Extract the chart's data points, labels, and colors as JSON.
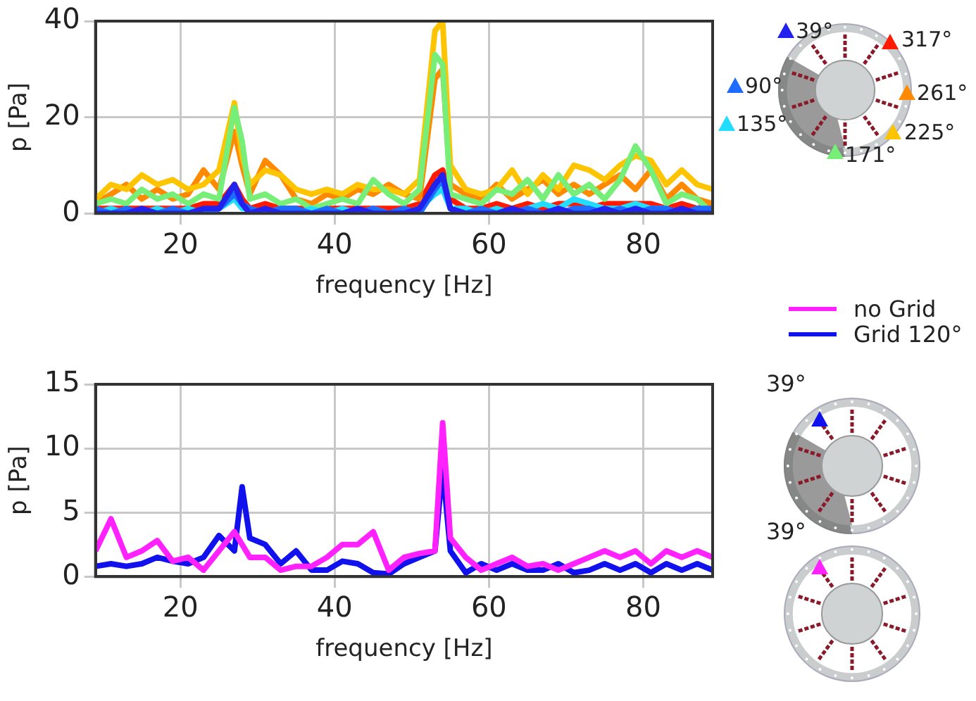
{
  "chart_data": [
    {
      "type": "line",
      "xlabel": "frequency [Hz]",
      "ylabel": "p [Pa]",
      "x": [
        9,
        11,
        13,
        15,
        17,
        19,
        21,
        23,
        25,
        27,
        28,
        29,
        31,
        33,
        35,
        37,
        39,
        41,
        43,
        45,
        47,
        49,
        51,
        53,
        54,
        55,
        57,
        59,
        61,
        63,
        65,
        67,
        69,
        71,
        73,
        75,
        77,
        79,
        81,
        83,
        85,
        87,
        89
      ],
      "series": [
        {
          "name": "39°",
          "color": "#2222ee",
          "values": [
            0,
            0,
            0,
            1,
            0,
            0,
            0,
            1,
            1,
            6,
            2,
            0,
            1,
            0,
            0,
            0,
            0,
            0,
            1,
            0,
            0,
            0,
            1,
            6,
            8,
            1,
            0,
            0,
            0,
            1,
            0,
            0,
            1,
            0,
            0,
            1,
            0,
            1,
            0,
            0,
            1,
            0,
            0
          ]
        },
        {
          "name": "90°",
          "color": "#1e6cff",
          "values": [
            1,
            0,
            1,
            0,
            0,
            1,
            0,
            0,
            1,
            4,
            2,
            1,
            0,
            1,
            1,
            0,
            1,
            0,
            0,
            1,
            0,
            1,
            0,
            5,
            7,
            1,
            0,
            1,
            0,
            0,
            1,
            0,
            0,
            1,
            1,
            0,
            1,
            0,
            1,
            1,
            0,
            1,
            1
          ]
        },
        {
          "name": "135°",
          "color": "#22ddff",
          "values": [
            0,
            1,
            0,
            0,
            1,
            0,
            1,
            0,
            1,
            3,
            1,
            1,
            0,
            1,
            0,
            1,
            0,
            1,
            0,
            1,
            0,
            0,
            1,
            4,
            5,
            1,
            1,
            0,
            1,
            0,
            1,
            2,
            1,
            3,
            2,
            1,
            1,
            2,
            1,
            1,
            null,
            null,
            null
          ]
        },
        {
          "name": "171°",
          "color": "#77ee77",
          "values": [
            2,
            3,
            2,
            5,
            3,
            4,
            2,
            4,
            3,
            22,
            15,
            3,
            4,
            2,
            3,
            1,
            2,
            3,
            2,
            7,
            4,
            2,
            5,
            33,
            31,
            4,
            3,
            2,
            5,
            4,
            7,
            3,
            8,
            4,
            6,
            3,
            7,
            14,
            9,
            2,
            4,
            3,
            0
          ]
        },
        {
          "name": "225°",
          "color": "#ffc400",
          "values": [
            3,
            6,
            5,
            8,
            6,
            7,
            5,
            6,
            9,
            23,
            12,
            6,
            9,
            8,
            5,
            4,
            5,
            4,
            6,
            5,
            5,
            4,
            7,
            38,
            40,
            10,
            5,
            4,
            5,
            9,
            4,
            8,
            5,
            10,
            9,
            7,
            10,
            12,
            11,
            6,
            9,
            6,
            5
          ]
        },
        {
          "name": "261°",
          "color": "#ff8a00",
          "values": [
            2,
            4,
            6,
            3,
            5,
            3,
            4,
            9,
            5,
            17,
            10,
            4,
            11,
            8,
            3,
            2,
            4,
            3,
            5,
            4,
            6,
            4,
            3,
            28,
            30,
            6,
            4,
            3,
            6,
            3,
            5,
            7,
            4,
            6,
            4,
            6,
            8,
            5,
            9,
            3,
            6,
            3,
            2
          ]
        },
        {
          "name": "317°",
          "color": "#ff1a00",
          "values": [
            1,
            1,
            1,
            1,
            1,
            1,
            1,
            2,
            2,
            6,
            3,
            1,
            2,
            1,
            1,
            1,
            1,
            1,
            1,
            1,
            1,
            1,
            2,
            8,
            9,
            3,
            1,
            1,
            2,
            1,
            2,
            1,
            2,
            2,
            1,
            2,
            2,
            2,
            2,
            1,
            2,
            1,
            2
          ]
        }
      ],
      "xlim": [
        9,
        89
      ],
      "xticks": [
        20,
        40,
        60,
        80
      ],
      "ylim": [
        0,
        40
      ],
      "yticks": [
        0,
        20,
        40
      ],
      "grid": true,
      "legend": "right"
    },
    {
      "type": "line",
      "xlabel": "frequency [Hz]",
      "ylabel": "p [Pa]",
      "x": [
        9,
        11,
        13,
        15,
        17,
        19,
        21,
        23,
        25,
        27,
        28,
        29,
        31,
        33,
        35,
        37,
        39,
        41,
        43,
        45,
        47,
        49,
        51,
        53,
        54,
        55,
        57,
        59,
        61,
        63,
        65,
        67,
        69,
        71,
        73,
        75,
        77,
        79,
        81,
        83,
        85,
        87,
        89
      ],
      "series": [
        {
          "name": "no Grid",
          "color": "#ff22ff",
          "values": [
            2,
            4.5,
            1.5,
            2,
            2.8,
            1.2,
            1.5,
            0.5,
            2,
            3.5,
            2.5,
            1.5,
            1.5,
            0.5,
            0.8,
            0.8,
            1.5,
            2.5,
            2.5,
            3.5,
            0.5,
            1.5,
            1.8,
            2,
            12,
            3,
            1.5,
            0.5,
            1,
            1.5,
            0.8,
            1,
            0.5,
            1,
            1.5,
            2,
            1.5,
            2,
            1,
            2,
            1.5,
            2,
            1.5
          ]
        },
        {
          "name": "Grid 120°",
          "color": "#1111ee",
          "values": [
            0.8,
            1,
            0.8,
            1,
            1.5,
            1.2,
            1,
            1.5,
            3.2,
            2,
            7,
            3,
            2.5,
            1,
            2,
            0.5,
            0.5,
            1.2,
            1,
            0.3,
            0.2,
            1,
            1.5,
            2,
            8.5,
            2,
            0.3,
            1,
            0.5,
            1,
            0.5,
            0.5,
            1,
            0.3,
            0.5,
            1,
            0.5,
            1,
            0.3,
            1,
            0.5,
            1,
            0.5
          ]
        }
      ],
      "xlim": [
        9,
        89
      ],
      "xticks": [
        20,
        40,
        60,
        80
      ],
      "ylim": [
        0,
        15
      ],
      "yticks": [
        0,
        5,
        10,
        15
      ],
      "grid": true,
      "legend": "top right",
      "annotations": [
        "39°",
        "39°"
      ]
    }
  ]
}
